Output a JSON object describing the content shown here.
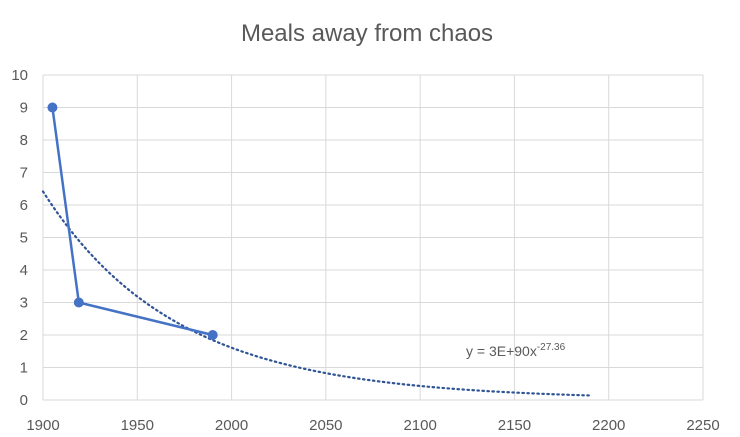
{
  "chart_data": {
    "type": "line",
    "title": "Meals away from chaos",
    "xlabel": "",
    "ylabel": "",
    "xlim": [
      1900,
      2250
    ],
    "ylim": [
      0,
      10
    ],
    "x_ticks": [
      1900,
      1950,
      2000,
      2050,
      2100,
      2150,
      2200,
      2250
    ],
    "y_ticks": [
      0,
      1,
      2,
      3,
      4,
      5,
      6,
      7,
      8,
      9,
      10
    ],
    "grid": true,
    "legend": "none",
    "series": [
      {
        "color": "#4472c4",
        "points": [
          {
            "x": 1905,
            "y": 9
          },
          {
            "x": 1919,
            "y": 3
          },
          {
            "x": 1990,
            "y": 2
          }
        ]
      }
    ],
    "trendline": {
      "type": "power",
      "style": "dotted",
      "color": "#2f5597",
      "x_range": [
        1900,
        2190
      ],
      "equation_main": "y = 3E+90x",
      "equation_exponent": "-27.36"
    }
  }
}
